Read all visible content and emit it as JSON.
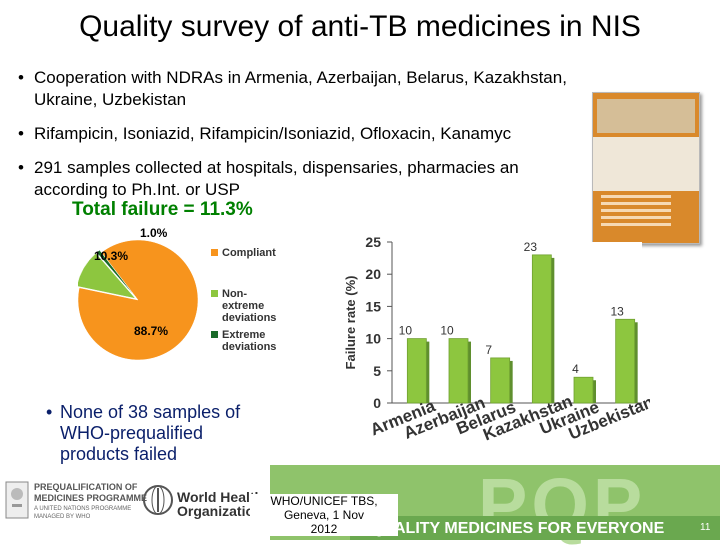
{
  "slide": {
    "title": "Quality survey of anti-TB medicines in NIS",
    "bullets": [
      {
        "line1": "Cooperation with NDRAs in Armenia, Azerbaijan, Belarus, Kazakhstan,",
        "line2": "Ukraine, Uzbekistan"
      },
      {
        "line1": "Rifampicin, Isoniazid, Rifampicin/Isoniazid, Ofloxacin, Kanamyc"
      },
      {
        "line1": "291 samples collected at hospitals, dispensaries, pharmacies an",
        "line2": "according to Ph.Int. or USP"
      }
    ],
    "bottom_bullet": [
      "None of 38 samples of",
      "WHO-prequalified",
      "products failed"
    ],
    "footnote": [
      "WHO/UNICEF TBS, Geneva, 1 Nov",
      "2012"
    ],
    "slide_number": "11"
  },
  "pie": {
    "heading": "Total failure = 11.3%",
    "labels": {
      "extreme": "1.0%",
      "nonextreme": "10.3%",
      "compliant": "88.7%"
    },
    "legend": [
      {
        "label": "Compliant",
        "color": "#f7941d"
      },
      {
        "label": "Non-\nextreme\ndeviations",
        "color": "#8dc63f"
      },
      {
        "label": "Extreme\ndeviations",
        "color": "#1a6b2a"
      }
    ]
  },
  "footer": {
    "prequal_lines": [
      "PREQUALIFICATION OF",
      "MEDICINES PROGRAMME"
    ],
    "prequal_sub": [
      "A UNITED NATIONS PROGRAMME",
      "MANAGED BY WHO"
    ],
    "who_lines": [
      "World Health",
      "Organization"
    ],
    "pqp_letters": "PQP",
    "tagline": "QUALITY MEDICINES FOR EVERYONE"
  },
  "chart_data": [
    {
      "type": "pie",
      "title": "Total failure = 11.3%",
      "categories": [
        "Compliant",
        "Non-extreme deviations",
        "Extreme deviations"
      ],
      "values": [
        88.7,
        10.3,
        1.0
      ],
      "colors": [
        "#f7941d",
        "#8dc63f",
        "#1a6b2a"
      ],
      "legend": "right"
    },
    {
      "type": "bar",
      "categories": [
        "Armenia",
        "Azerbaijan",
        "Belarus",
        "Kazakhstan",
        "Ukraine",
        "Uzbekistan"
      ],
      "values": [
        10,
        10,
        7,
        23,
        4,
        13
      ],
      "ylabel": "Failure rate (%)",
      "ylim": [
        0,
        25
      ],
      "yticks": [
        0,
        5,
        10,
        15,
        20,
        25
      ],
      "bar_color": "#8dc63f",
      "grid": false
    }
  ]
}
